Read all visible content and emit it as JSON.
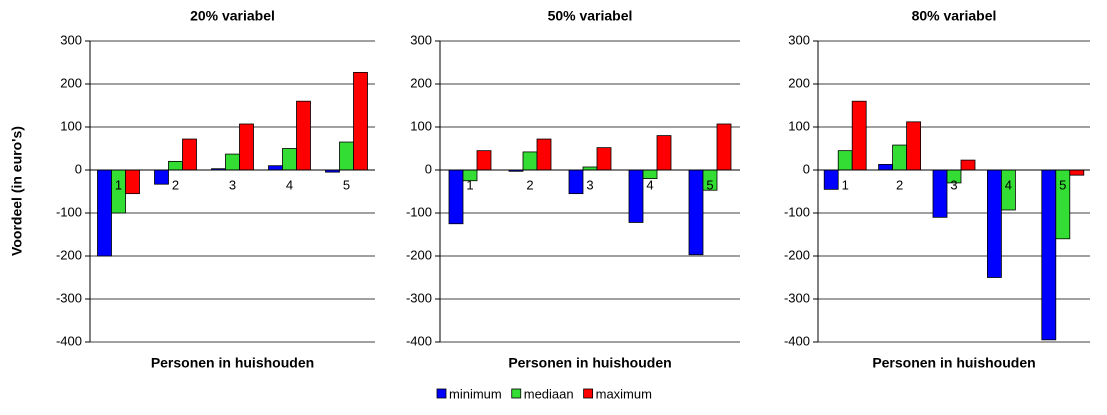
{
  "chart_data": [
    {
      "type": "bar",
      "title": "20%  variabel",
      "x_label": "Personen in huishouden",
      "y_label": "Voordeel (in euro's)",
      "categories": [
        "1",
        "2",
        "3",
        "4",
        "5"
      ],
      "series": [
        {
          "name": "minimum",
          "color": "#0000ff",
          "values": [
            -200,
            -33,
            3,
            10,
            -5
          ]
        },
        {
          "name": "mediaan",
          "color": "#33dd33",
          "values": [
            -100,
            20,
            37,
            50,
            65
          ]
        },
        {
          "name": "maximum",
          "color": "#ff0000",
          "values": [
            -55,
            72,
            107,
            160,
            227
          ]
        }
      ],
      "ylim": [
        -400,
        300
      ],
      "yticks": [
        -400,
        -300,
        -200,
        -100,
        0,
        100,
        200,
        300
      ],
      "grid": true
    },
    {
      "type": "bar",
      "title": "50%  variabel",
      "x_label": "Personen in huishouden",
      "categories": [
        "1",
        "2",
        "3",
        "4",
        "5"
      ],
      "series": [
        {
          "color": "#0000ff",
          "values": [
            -125,
            -3,
            -55,
            -122,
            -197
          ]
        },
        {
          "color": "#33dd33",
          "values": [
            -25,
            42,
            7,
            -20,
            -47
          ]
        },
        {
          "color": "#ff0000",
          "values": [
            45,
            72,
            52,
            80,
            107
          ]
        }
      ],
      "ylim": [
        -400,
        300
      ],
      "yticks": [
        -400,
        -300,
        -200,
        -100,
        0,
        100,
        200,
        300
      ],
      "grid": true
    },
    {
      "type": "bar",
      "title": "80%  variabel",
      "x_label": "Personen in huishouden",
      "categories": [
        "1",
        "2",
        "3",
        "4",
        "5"
      ],
      "series": [
        {
          "color": "#0000ff",
          "values": [
            -45,
            13,
            -110,
            -250,
            -395
          ]
        },
        {
          "color": "#33dd33",
          "values": [
            45,
            58,
            -30,
            -93,
            -160
          ]
        },
        {
          "color": "#ff0000",
          "values": [
            160,
            112,
            23,
            0,
            -12
          ]
        }
      ],
      "ylim": [
        -400,
        300
      ],
      "yticks": [
        -400,
        -300,
        -200,
        -100,
        0,
        100,
        200,
        300
      ],
      "grid": true
    }
  ]
}
